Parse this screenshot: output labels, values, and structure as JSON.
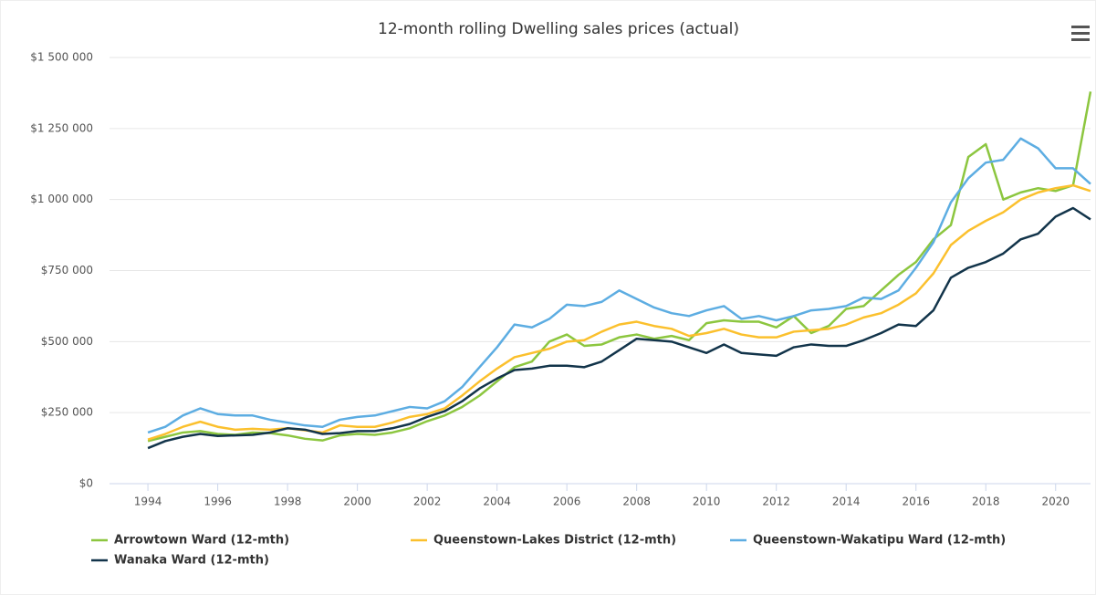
{
  "chart_data": {
    "type": "line",
    "title": "12-month rolling Dwelling sales prices (actual)",
    "x": [
      1994,
      1994.5,
      1995,
      1995.5,
      1996,
      1996.5,
      1997,
      1997.5,
      1998,
      1998.5,
      1999,
      1999.5,
      2000,
      2000.5,
      2001,
      2001.5,
      2002,
      2002.5,
      2003,
      2003.5,
      2004,
      2004.5,
      2005,
      2005.5,
      2006,
      2006.5,
      2007,
      2007.5,
      2008,
      2008.5,
      2009,
      2009.5,
      2010,
      2010.5,
      2011,
      2011.5,
      2012,
      2012.5,
      2013,
      2013.5,
      2014,
      2014.5,
      2015,
      2015.5,
      2016,
      2016.5,
      2017,
      2017.5,
      2018,
      2018.5,
      2019,
      2019.5,
      2020,
      2020.5,
      2021
    ],
    "xlim": [
      1992.9,
      2021
    ],
    "xticks": [
      1994,
      1996,
      1998,
      2000,
      2002,
      2004,
      2006,
      2008,
      2010,
      2012,
      2014,
      2016,
      2018,
      2020
    ],
    "ylim": [
      0,
      1500000
    ],
    "yticks": [
      {
        "value": 0,
        "label": "$0"
      },
      {
        "value": 250000,
        "label": "$250 000"
      },
      {
        "value": 500000,
        "label": "$500 000"
      },
      {
        "value": 750000,
        "label": "$750 000"
      },
      {
        "value": 1000000,
        "label": "$1 000 000"
      },
      {
        "value": 1250000,
        "label": "$1 250 000"
      },
      {
        "value": 1500000,
        "label": "$1 500 000"
      }
    ],
    "grid": true,
    "series": [
      {
        "name": "Arrowtown Ward (12-mth)",
        "color": "#8cc63f",
        "values": [
          150000,
          165000,
          180000,
          185000,
          175000,
          172000,
          180000,
          178000,
          170000,
          158000,
          152000,
          170000,
          175000,
          172000,
          180000,
          195000,
          220000,
          240000,
          270000,
          310000,
          360000,
          410000,
          430000,
          500000,
          525000,
          485000,
          490000,
          515000,
          525000,
          510000,
          520000,
          505000,
          565000,
          575000,
          570000,
          570000,
          550000,
          590000,
          530000,
          555000,
          615000,
          625000,
          680000,
          735000,
          780000,
          860000,
          910000,
          1150000,
          1195000,
          1000000,
          1025000,
          1040000,
          1030000,
          1050000,
          1380000
        ]
      },
      {
        "name": "Queenstown-Lakes District (12-mth)",
        "color": "#fbc02d",
        "values": [
          155000,
          175000,
          200000,
          218000,
          200000,
          190000,
          193000,
          190000,
          195000,
          188000,
          180000,
          205000,
          200000,
          200000,
          215000,
          235000,
          245000,
          265000,
          310000,
          360000,
          405000,
          445000,
          460000,
          475000,
          500000,
          505000,
          535000,
          560000,
          570000,
          555000,
          545000,
          520000,
          530000,
          545000,
          525000,
          515000,
          515000,
          535000,
          540000,
          545000,
          560000,
          585000,
          600000,
          630000,
          670000,
          740000,
          840000,
          890000,
          925000,
          955000,
          1000000,
          1025000,
          1040000,
          1050000,
          1030000
        ]
      },
      {
        "name": "Queenstown-Wakatipu Ward (12-mth)",
        "color": "#5dade2",
        "values": [
          180000,
          200000,
          240000,
          265000,
          245000,
          240000,
          240000,
          225000,
          215000,
          205000,
          200000,
          225000,
          235000,
          240000,
          255000,
          270000,
          265000,
          290000,
          340000,
          410000,
          480000,
          560000,
          550000,
          580000,
          630000,
          625000,
          640000,
          680000,
          650000,
          620000,
          600000,
          590000,
          610000,
          625000,
          580000,
          590000,
          575000,
          590000,
          610000,
          615000,
          625000,
          655000,
          650000,
          680000,
          760000,
          850000,
          990000,
          1075000,
          1130000,
          1140000,
          1215000,
          1180000,
          1110000,
          1110000,
          1055000
        ]
      },
      {
        "name": "Wanaka Ward (12-mth)",
        "color": "#12344a",
        "values": [
          125000,
          150000,
          165000,
          175000,
          168000,
          170000,
          172000,
          180000,
          195000,
          190000,
          175000,
          178000,
          185000,
          185000,
          195000,
          210000,
          235000,
          255000,
          290000,
          335000,
          370000,
          400000,
          405000,
          415000,
          415000,
          410000,
          430000,
          470000,
          510000,
          505000,
          500000,
          480000,
          460000,
          490000,
          460000,
          455000,
          450000,
          480000,
          490000,
          485000,
          485000,
          505000,
          530000,
          560000,
          555000,
          610000,
          725000,
          760000,
          780000,
          810000,
          860000,
          880000,
          940000,
          970000,
          930000
        ]
      }
    ]
  }
}
